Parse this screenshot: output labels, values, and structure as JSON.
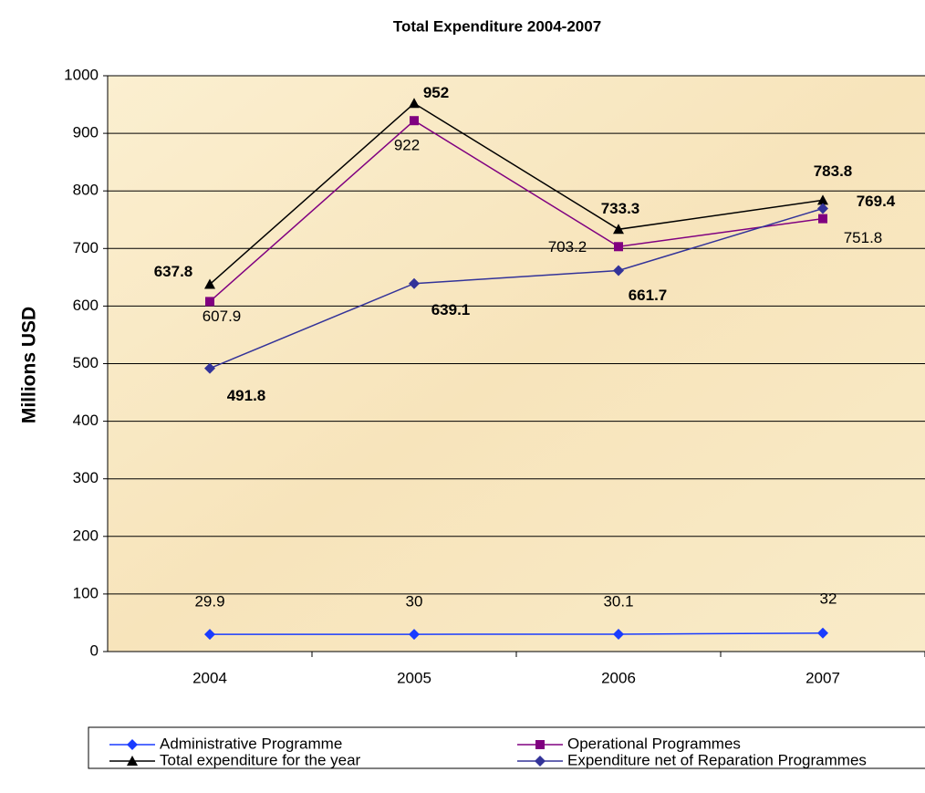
{
  "chart_data": {
    "type": "line",
    "title": "Total Expenditure 2004-2007",
    "y_label": "Millions USD",
    "categories": [
      "2004",
      "2005",
      "2006",
      "2007"
    ],
    "series": [
      {
        "name": "Administrative Programme",
        "color": "#1a3cff",
        "marker": "diamond",
        "bold_labels": false,
        "values": [
          29.9,
          30,
          30.1,
          32
        ]
      },
      {
        "name": "Operational Programmes",
        "color": "#800080",
        "marker": "square",
        "bold_labels": false,
        "values": [
          607.9,
          922,
          703.2,
          751.8
        ]
      },
      {
        "name": "Total expenditure for the year",
        "color": "#000000",
        "marker": "triangle",
        "bold_labels": true,
        "values": [
          637.8,
          952,
          733.3,
          783.8
        ]
      },
      {
        "name": "Expenditure net of Reparation Programmes",
        "color": "#333399",
        "marker": "diamond",
        "bold_labels": true,
        "values": [
          491.8,
          639.1,
          661.7,
          769.4
        ]
      }
    ],
    "ylim": [
      0,
      1000
    ],
    "yticks": [
      0,
      100,
      200,
      300,
      400,
      500,
      600,
      700,
      800,
      900,
      1000
    ],
    "grid": true
  }
}
